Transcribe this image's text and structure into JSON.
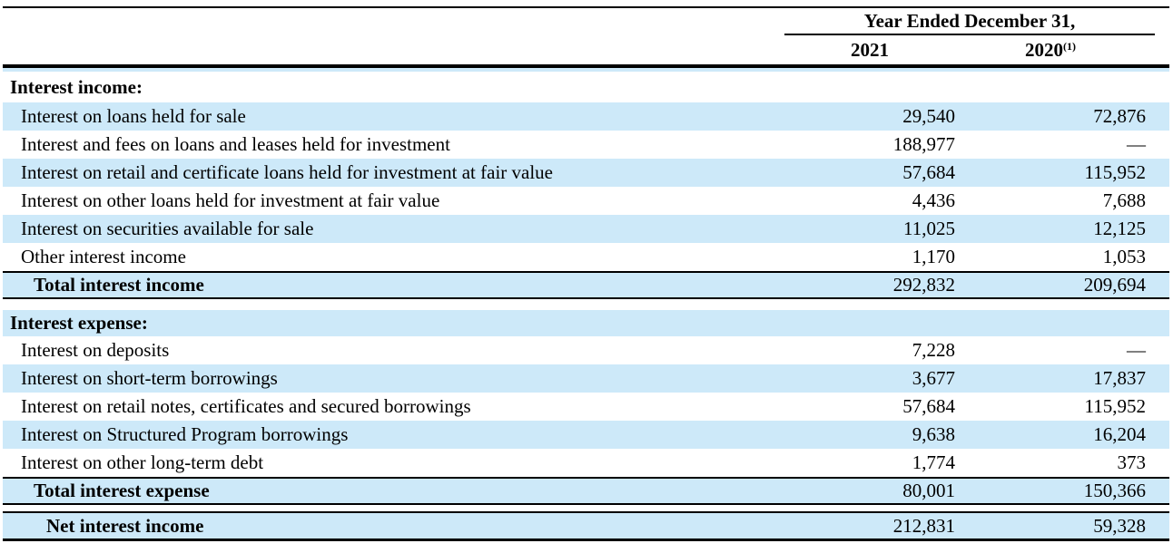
{
  "header": {
    "group_title": "Year Ended December 31,",
    "col1": "2021",
    "col2": "2020",
    "col2_sup": "(1)"
  },
  "income": {
    "section_label": "Interest income:",
    "rows": [
      {
        "label": "Interest on loans held for sale",
        "y2021": "29,540",
        "y2020": "72,876"
      },
      {
        "label": "Interest and fees on loans and leases held for investment",
        "y2021": "188,977",
        "y2020": "—"
      },
      {
        "label": "Interest on retail and certificate loans held for investment at fair value",
        "y2021": "57,684",
        "y2020": "115,952"
      },
      {
        "label": "Interest on other loans held for investment at fair value",
        "y2021": "4,436",
        "y2020": "7,688"
      },
      {
        "label": "Interest on securities available for sale",
        "y2021": "11,025",
        "y2020": "12,125"
      },
      {
        "label": "Other interest income",
        "y2021": "1,170",
        "y2020": "1,053"
      }
    ],
    "total": {
      "label": "Total interest income",
      "y2021": "292,832",
      "y2020": "209,694"
    }
  },
  "expense": {
    "section_label": "Interest expense:",
    "rows": [
      {
        "label": "Interest on deposits",
        "y2021": "7,228",
        "y2020": "—"
      },
      {
        "label": "Interest on short-term borrowings",
        "y2021": "3,677",
        "y2020": "17,837"
      },
      {
        "label": "Interest on retail notes, certificates and secured borrowings",
        "y2021": "57,684",
        "y2020": "115,952"
      },
      {
        "label": "Interest on Structured Program borrowings",
        "y2021": "9,638",
        "y2020": "16,204"
      },
      {
        "label": "Interest on other long-term debt",
        "y2021": "1,774",
        "y2020": "373"
      }
    ],
    "total": {
      "label": "Total interest expense",
      "y2021": "80,001",
      "y2020": "150,366"
    }
  },
  "net": {
    "label": "Net interest income",
    "y2021": "212,831",
    "y2020": "59,328"
  },
  "colors": {
    "stripe": "#cde9f9",
    "text": "#000000",
    "rule": "#000000"
  }
}
